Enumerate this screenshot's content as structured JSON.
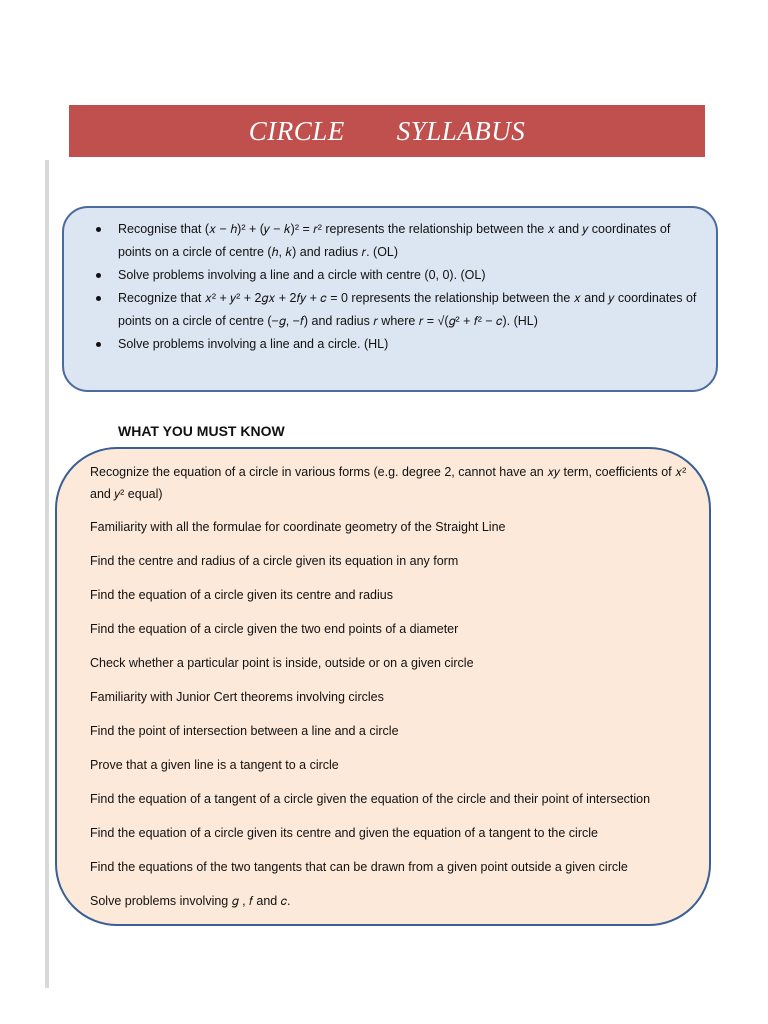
{
  "title": {
    "word1": "CIRCLE",
    "word2": "SYLLABUS"
  },
  "syllabus": [
    "Recognise that (𝑥 − ℎ)² + (𝑦 − 𝑘)² = 𝑟² represents the relationship between the 𝑥 and 𝑦 coordinates of points on a circle of centre (ℎ,  𝑘) and radius 𝑟. (OL)",
    "Solve problems involving a line and a circle with centre  (0,  0). (OL)",
    "Recognize that 𝑥² + 𝑦² + 2𝑔𝑥 + 2𝑓𝑦 + 𝑐 = 0 represents the relationship between the 𝑥 and 𝑦 coordinates of points on a circle of  centre (−𝑔,  −𝑓) and radius 𝑟 where 𝑟 = √(𝑔² + 𝑓² − 𝑐). (HL)",
    "Solve problems involving a line and a circle. (HL)"
  ],
  "must_know_heading": "WHAT YOU MUST KNOW",
  "must_know": [
    "Recognize the equation of a circle in various forms (e.g. degree 2, cannot have an 𝑥𝑦 term, coefficients of 𝑥² and 𝑦² equal)",
    "Familiarity with all the formulae for coordinate geometry of the Straight Line",
    "Find the centre and radius of a circle given its equation in any form",
    "Find the equation of a circle given its centre and radius",
    "Find the equation of a circle given the two end points of a diameter",
    "Check whether a particular point is inside, outside or on a given circle",
    "Familiarity with Junior Cert theorems involving circles",
    "Find the point of intersection between a line and a circle",
    "Prove that a given line is a tangent to a circle",
    "Find the equation of a tangent of a circle given the equation of the circle and their point of intersection",
    "Find the equation of a circle given its centre and given the equation of a tangent to the circle",
    "Find the equations of the two tangents that can be drawn from a given point outside a given circle",
    "Solve problems involving 𝑔 , 𝑓 and 𝑐."
  ],
  "colors": {
    "title_bar": "#c0504d",
    "syllabus_box": "#dce6f2",
    "must_know_box": "#fde9d9",
    "border": "#4a6b9c"
  }
}
